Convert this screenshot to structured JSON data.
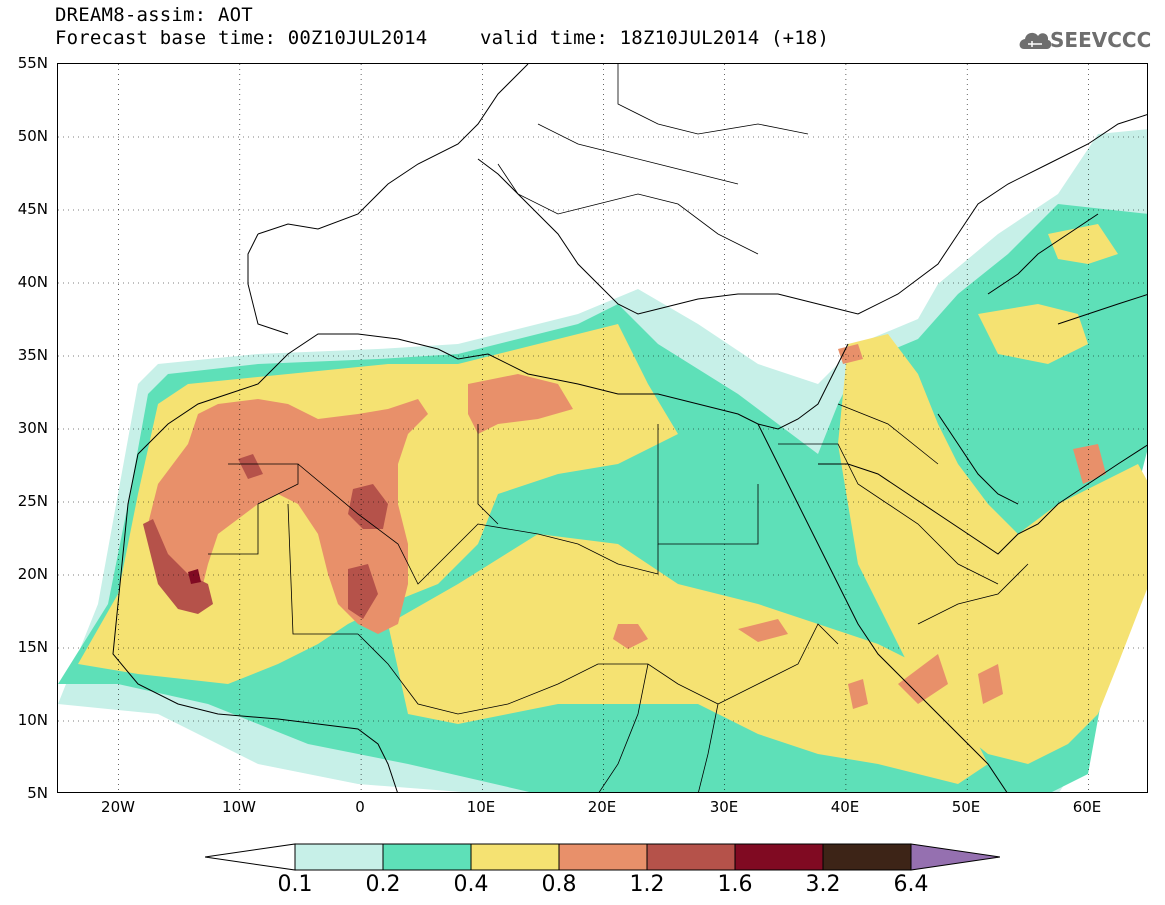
{
  "title": {
    "line1": "DREAM8-assim: AOT",
    "line2": "Forecast base time: 00Z10JUL2014",
    "line3": "valid time: 18Z10JUL2014 (+18)"
  },
  "logo": {
    "text": "SEEVCCC",
    "icon": "cloud-icon"
  },
  "map": {
    "lon_range": [
      -25,
      65
    ],
    "lat_range": [
      5,
      55
    ],
    "lat_labels": [
      "55N",
      "50N",
      "45N",
      "40N",
      "35N",
      "30N",
      "25N",
      "20N",
      "15N",
      "10N",
      "5N"
    ],
    "lon_labels": [
      "20W",
      "10W",
      "0",
      "10E",
      "20E",
      "30E",
      "40E",
      "50E",
      "60E"
    ],
    "grid": "dotted"
  },
  "legend": {
    "levels": [
      "0.1",
      "0.2",
      "0.4",
      "0.8",
      "1.2",
      "1.6",
      "3.2",
      "6.4"
    ],
    "colors": [
      "#ffffff",
      "#c7f0e8",
      "#5ee0b8",
      "#f5e272",
      "#e8906a",
      "#b5524a",
      "#800a22",
      "#3d2417",
      "#9570b0"
    ]
  }
}
